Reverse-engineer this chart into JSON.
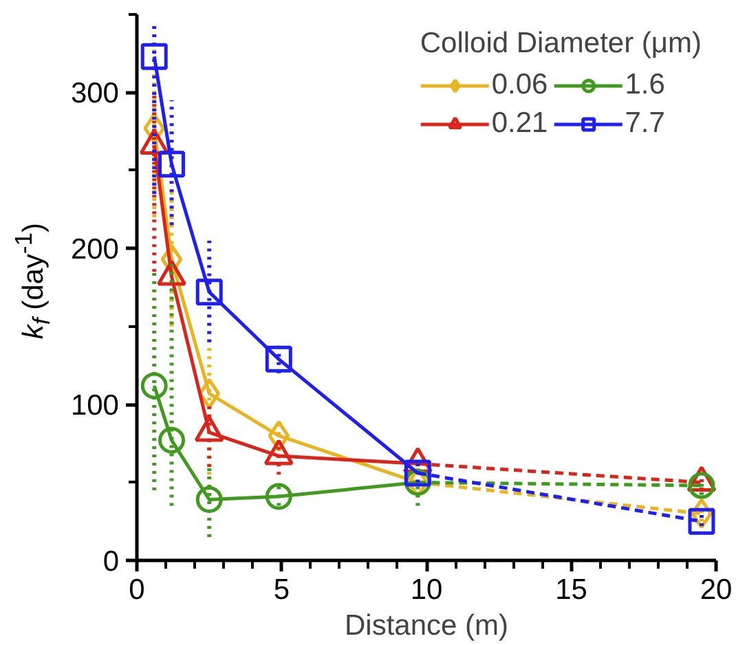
{
  "chart_data": {
    "type": "line",
    "xlabel": "Distance (m)",
    "ylabel": "k$_{f}$ (day$^{-1}$)",
    "legend_title": "Colloid Diameter (μm)",
    "legend": "top right",
    "grid": false,
    "xlim": [
      0,
      20
    ],
    "xticks": [
      0,
      5,
      10,
      15,
      20
    ],
    "ylim": [
      0,
      350
    ],
    "yticks": [
      0,
      100,
      200,
      300
    ],
    "series": [
      {
        "name": "0.06",
        "color": "#e8b422",
        "marker": "diamond",
        "line_style": [
          "solid",
          "solid",
          "solid",
          "solid",
          "dashed"
        ],
        "x": [
          0.6,
          1.2,
          2.5,
          4.9,
          9.7,
          19.5
        ],
        "values": [
          277,
          193,
          107,
          80,
          50,
          30
        ],
        "errors": [
          [
            220,
            330
          ],
          [
            150,
            240
          ],
          [
            55,
            160
          ],
          [
            70,
            90
          ],
          null,
          [
            25,
            35
          ]
        ]
      },
      {
        "name": "0.21",
        "color": "#d9261c",
        "marker": "triangle",
        "line_style": [
          "solid",
          "solid",
          "solid",
          "solid",
          "dashed"
        ],
        "x": [
          0.6,
          1.2,
          2.5,
          4.9,
          9.7,
          19.5
        ],
        "values": [
          266,
          182,
          82,
          67,
          62,
          50
        ],
        "errors": [
          [
            185,
            300
          ],
          null,
          [
            60,
            100
          ],
          [
            55,
            75
          ],
          [
            55,
            62
          ],
          [
            45,
            55
          ]
        ]
      },
      {
        "name": "1.6",
        "color": "#3f9a1e",
        "marker": "circle",
        "line_style": [
          "solid",
          "solid",
          "solid",
          "solid",
          "dashed"
        ],
        "x": [
          0.6,
          1.2,
          2.5,
          4.9,
          9.7,
          19.5
        ],
        "values": [
          112,
          77,
          39,
          41,
          50,
          48
        ],
        "errors": [
          [
            45,
            185
          ],
          [
            35,
            190
          ],
          [
            15,
            60
          ],
          [
            35,
            48
          ],
          [
            35,
            50
          ],
          [
            42,
            52
          ]
        ]
      },
      {
        "name": "7.7",
        "color": "#1f1ff0",
        "marker": "square",
        "line_style": [
          "solid",
          "solid",
          "solid",
          "solid",
          "dashed"
        ],
        "x": [
          0.6,
          1.2,
          2.5,
          4.9,
          9.7,
          19.5
        ],
        "values": [
          323,
          254,
          172,
          129,
          56,
          25
        ],
        "errors": [
          [
            235,
            345
          ],
          [
            215,
            295
          ],
          [
            140,
            205
          ],
          [
            120,
            140
          ],
          [
            50,
            62
          ],
          [
            22,
            30
          ]
        ]
      }
    ]
  }
}
